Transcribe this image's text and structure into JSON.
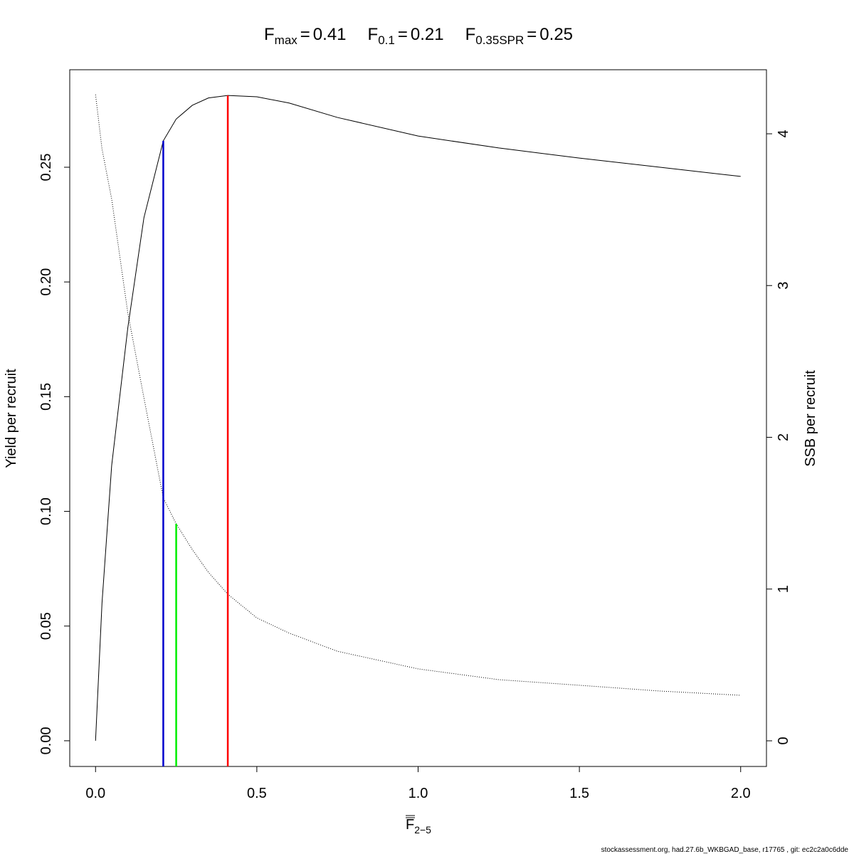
{
  "chart_data": {
    "type": "line",
    "reference_points": [
      {
        "symbol": "F",
        "subscript": "max",
        "relation": "=",
        "x": 0.41,
        "y": 0.2813,
        "color": "#ff0000"
      },
      {
        "symbol": "F",
        "subscript": "0.1",
        "relation": "=",
        "x": 0.21,
        "y": 0.2615,
        "color": "#0000cd"
      },
      {
        "symbol": "F",
        "subscript": "0.35SPR",
        "relation": "=",
        "x": 0.25,
        "y": 0.0946,
        "color": "#00ee00"
      }
    ],
    "xlabel": {
      "symbol": "F",
      "subscript": "2−5"
    },
    "ylabel": "Yield per recruit",
    "y2label": "SSB per recruit",
    "x": [
      0,
      0.02,
      0.05,
      0.1,
      0.15,
      0.21,
      0.25,
      0.3,
      0.35,
      0.41,
      0.5,
      0.6,
      0.75,
      1.0,
      1.25,
      1.5,
      1.75,
      2.0
    ],
    "series": [
      {
        "values": [
          0,
          0.06,
          0.12,
          0.18,
          0.228,
          0.2615,
          0.271,
          0.277,
          0.2802,
          0.2813,
          0.2807,
          0.278,
          0.2717,
          0.2636,
          0.2584,
          0.254,
          0.25,
          0.246
        ],
        "color": "#000000",
        "line_style": "solid"
      },
      {
        "values": [
          4.258,
          3.9,
          3.57,
          2.82,
          2.26,
          1.6,
          1.43,
          1.26,
          1.11,
          0.966,
          0.81,
          0.71,
          0.59,
          0.474,
          0.403,
          0.366,
          0.328,
          0.3
        ],
        "color": "#000000",
        "line_style": "dotted",
        "axis": "y2"
      }
    ],
    "xlim": [
      -0.08,
      2.08
    ],
    "ylim": [
      -0.0112,
      0.2925
    ],
    "y2lim": [
      -0.169,
      4.422
    ],
    "xticks": [
      {
        "value": 0,
        "label": "0.0"
      },
      {
        "value": 0.5,
        "label": "0.5"
      },
      {
        "value": 1,
        "label": "1.0"
      },
      {
        "value": 1.5,
        "label": "1.5"
      },
      {
        "value": 2,
        "label": "2.0"
      }
    ],
    "yticks": [
      {
        "value": 0,
        "label": "0.00"
      },
      {
        "value": 0.05,
        "label": "0.05"
      },
      {
        "value": 0.1,
        "label": "0.10"
      },
      {
        "value": 0.15,
        "label": "0.15"
      },
      {
        "value": 0.2,
        "label": "0.20"
      },
      {
        "value": 0.25,
        "label": "0.25"
      }
    ],
    "y2ticks": [
      0,
      1,
      2,
      3,
      4
    ],
    "footer": "stockassessment.org, had.27.6b_WKBGAD_base, r17765 , git: ec2c2a0c6dde"
  }
}
